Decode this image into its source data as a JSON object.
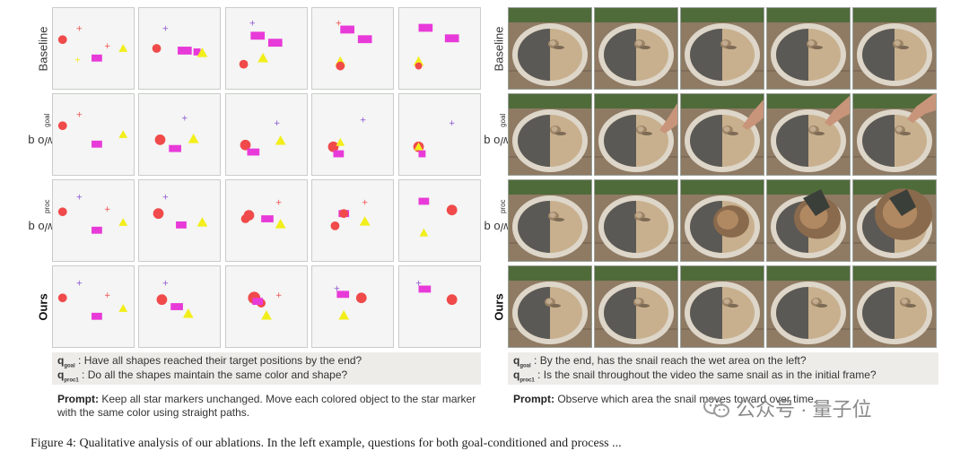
{
  "left": {
    "rows": [
      {
        "label": "Baseline"
      },
      {
        "label_prefix": "w/o q",
        "label_sub": "goal"
      },
      {
        "label_prefix": "w/o q",
        "label_sub": "proc"
      },
      {
        "label": "Ours"
      }
    ],
    "q_goal_sub": "goal",
    "q_goal_text": " : Have all shapes reached their target positions by the end?",
    "q_proc_sub": "proc1",
    "q_proc_text": " : Do all the shapes maintain the same color and shape?",
    "prompt_label": "Prompt:",
    "prompt_text": " Keep all star markers unchanged. Move each colored object to the star marker with the same color using straight paths."
  },
  "right": {
    "rows": [
      {
        "label": "Baseline"
      },
      {
        "label_prefix": "w/o q",
        "label_sub": "goal"
      },
      {
        "label_prefix": "w/o q",
        "label_sub": "proc"
      },
      {
        "label": "Ours"
      }
    ],
    "q_goal_sub": "goal",
    "q_goal_text": " : By the end, has the snail reach the wet area on the left?",
    "q_proc_sub": "proc1",
    "q_proc_text": " : Is the snail throughout the video the same snail as in the initial frame?",
    "prompt_label": "Prompt:",
    "prompt_text": " Observe which area the snail moves toward over time."
  },
  "q_prefix": "q",
  "watermark": "公众号 · 量子位",
  "caption": "Figure 4: Qualitative analysis of our ablations. In the left example, questions for both goal-conditioned and process ...",
  "colors": {
    "red": "#f04a4a",
    "magenta": "#e83ad8",
    "yellow": "#f2ee1a",
    "purple": "#8a4fd0"
  }
}
